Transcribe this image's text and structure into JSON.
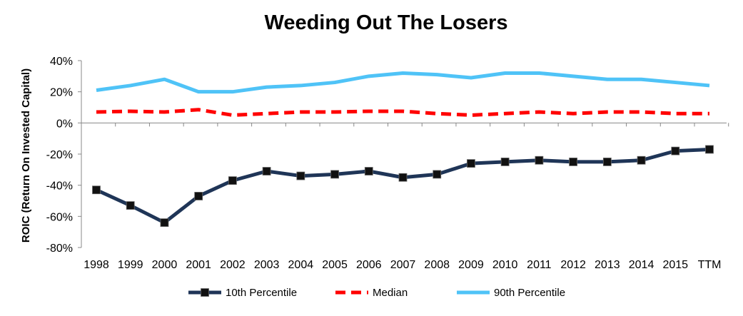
{
  "chart_data": {
    "type": "line",
    "title": "Weeding Out The Losers",
    "xlabel": "",
    "ylabel": "ROIC (Return On Invested Capital)",
    "categories": [
      "1998",
      "1999",
      "2000",
      "2001",
      "2002",
      "2003",
      "2004",
      "2005",
      "2006",
      "2007",
      "2008",
      "2009",
      "2010",
      "2011",
      "2012",
      "2013",
      "2014",
      "2015",
      "TTM"
    ],
    "yticks": [
      "40%",
      "20%",
      "0%",
      "-20%",
      "-40%",
      "-60%",
      "-80%"
    ],
    "ylim": [
      -80,
      40
    ],
    "grid": false,
    "legend_position": "bottom",
    "series": [
      {
        "name": "10th Percentile",
        "color": "#1f3557",
        "style": "solid-square-markers",
        "values": [
          -43,
          -53,
          -64,
          -47,
          -37,
          -31,
          -34,
          -33,
          -31,
          -35,
          -33,
          -26,
          -25,
          -24,
          -25,
          -25,
          -24,
          -18,
          -17
        ]
      },
      {
        "name": "Median",
        "color": "#ff0000",
        "style": "dashed",
        "values": [
          7,
          7.5,
          7,
          8.5,
          5,
          6,
          7,
          7,
          7.5,
          7.5,
          6,
          5,
          6,
          7,
          6,
          7,
          7,
          6,
          6
        ]
      },
      {
        "name": "90th Percentile",
        "color": "#4fc3f7",
        "style": "solid",
        "values": [
          21,
          24,
          28,
          20,
          20,
          23,
          24,
          26,
          30,
          32,
          31,
          29,
          32,
          32,
          30,
          28,
          28,
          26,
          24
        ]
      }
    ]
  }
}
